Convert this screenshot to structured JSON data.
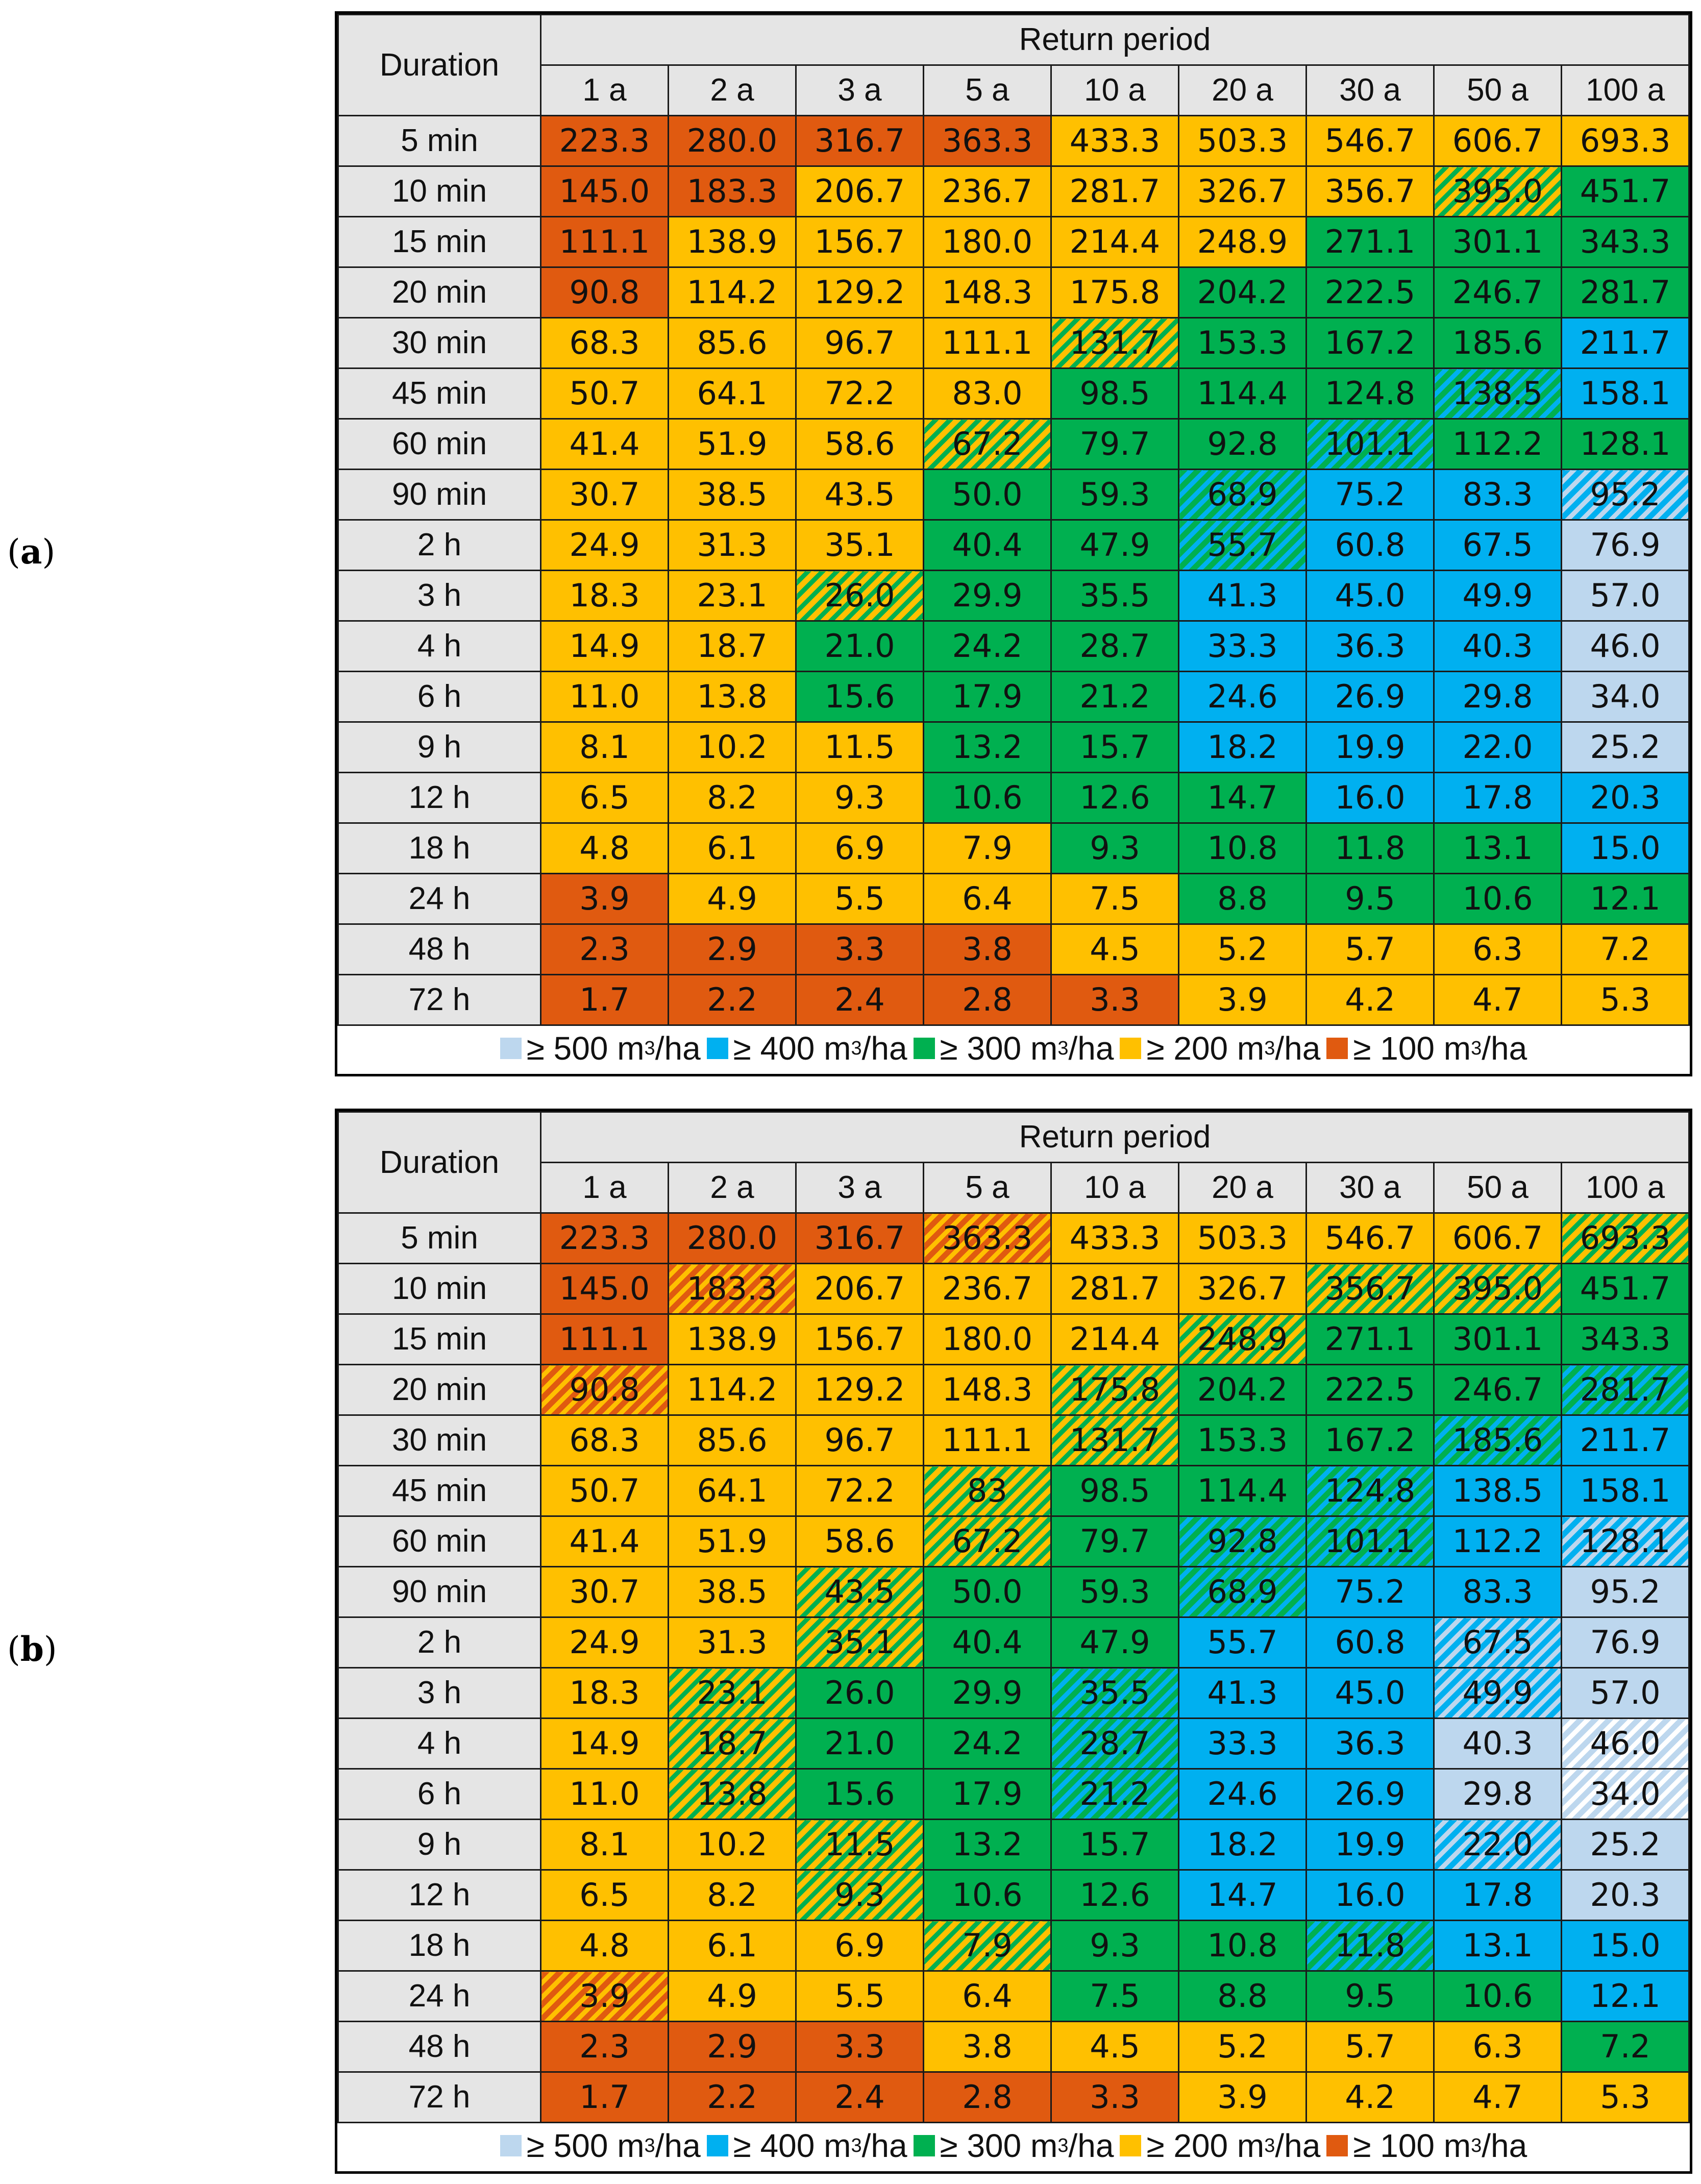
{
  "panels": [
    {
      "label": "a",
      "legend": [
        {
          "text": "≥ 500 m",
          "unit": "/ha",
          "sup": "3",
          "color": "#bdd7ee"
        },
        {
          "text": "≥ 400 m",
          "unit": "/ha",
          "sup": "3",
          "color": "#00b0f0"
        },
        {
          "text": "≥ 300 m",
          "unit": "/ha",
          "sup": "3",
          "color": "#00b050"
        },
        {
          "text": "≥ 200 m",
          "unit": "/ha",
          "sup": "3",
          "color": "#ffc000"
        },
        {
          "text": "≥ 100 m",
          "unit": "/ha",
          "sup": "3",
          "color": "#e05a10"
        }
      ]
    },
    {
      "label": "b",
      "legend": [
        {
          "text": "≥ 500 m",
          "unit": "/ha",
          "sup": "3",
          "color": "#bdd7ee"
        },
        {
          "text": "≥ 400 m",
          "unit": "/ha",
          "sup": "3",
          "color": "#00b0f0"
        },
        {
          "text": "≥ 300 m",
          "unit": "/ha",
          "sup": "3",
          "color": "#00b050"
        },
        {
          "text": "≥ 200 m",
          "unit": "/ha",
          "sup": "3",
          "color": "#ffc000"
        },
        {
          "text": "≥ 100 m",
          "unit": "/ha",
          "sup": "3",
          "color": "#e05a10"
        }
      ]
    }
  ],
  "colors": {
    "L": "#bdd7ee",
    "B": "#00b0f0",
    "G": "#00b050",
    "Y": "#ffc000",
    "O": "#e05a10",
    "header_bg": "#e5e5e5"
  },
  "chart_data": [
    {
      "type": "table",
      "panel": "a",
      "corner_label": "Duration",
      "group_header": "Return period",
      "columns": [
        "1 a",
        "2 a",
        "3 a",
        "5 a",
        "10 a",
        "20 a",
        "30 a",
        "50 a",
        "100 a"
      ],
      "rows": [
        "5 min",
        "10 min",
        "15 min",
        "20 min",
        "30 min",
        "45 min",
        "60 min",
        "90 min",
        "2 h",
        "3 h",
        "4 h",
        "6 h",
        "9 h",
        "12 h",
        "18 h",
        "24 h",
        "48 h",
        "72 h"
      ],
      "values": [
        [
          "223.3",
          "280.0",
          "316.7",
          "363.3",
          "433.3",
          "503.3",
          "546.7",
          "606.7",
          "693.3"
        ],
        [
          "145.0",
          "183.3",
          "206.7",
          "236.7",
          "281.7",
          "326.7",
          "356.7",
          "395.0",
          "451.7"
        ],
        [
          "111.1",
          "138.9",
          "156.7",
          "180.0",
          "214.4",
          "248.9",
          "271.1",
          "301.1",
          "343.3"
        ],
        [
          "90.8",
          "114.2",
          "129.2",
          "148.3",
          "175.8",
          "204.2",
          "222.5",
          "246.7",
          "281.7"
        ],
        [
          "68.3",
          "85.6",
          "96.7",
          "111.1",
          "131.7",
          "153.3",
          "167.2",
          "185.6",
          "211.7"
        ],
        [
          "50.7",
          "64.1",
          "72.2",
          "83.0",
          "98.5",
          "114.4",
          "124.8",
          "138.5",
          "158.1"
        ],
        [
          "41.4",
          "51.9",
          "58.6",
          "67.2",
          "79.7",
          "92.8",
          "101.1",
          "112.2",
          "128.1"
        ],
        [
          "30.7",
          "38.5",
          "43.5",
          "50.0",
          "59.3",
          "68.9",
          "75.2",
          "83.3",
          "95.2"
        ],
        [
          "24.9",
          "31.3",
          "35.1",
          "40.4",
          "47.9",
          "55.7",
          "60.8",
          "67.5",
          "76.9"
        ],
        [
          "18.3",
          "23.1",
          "26.0",
          "29.9",
          "35.5",
          "41.3",
          "45.0",
          "49.9",
          "57.0"
        ],
        [
          "14.9",
          "18.7",
          "21.0",
          "24.2",
          "28.7",
          "33.3",
          "36.3",
          "40.3",
          "46.0"
        ],
        [
          "11.0",
          "13.8",
          "15.6",
          "17.9",
          "21.2",
          "24.6",
          "26.9",
          "29.8",
          "34.0"
        ],
        [
          "8.1",
          "10.2",
          "11.5",
          "13.2",
          "15.7",
          "18.2",
          "19.9",
          "22.0",
          "25.2"
        ],
        [
          "6.5",
          "8.2",
          "9.3",
          "10.6",
          "12.6",
          "14.7",
          "16.0",
          "17.8",
          "20.3"
        ],
        [
          "4.8",
          "6.1",
          "6.9",
          "7.9",
          "9.3",
          "10.8",
          "11.8",
          "13.1",
          "15.0"
        ],
        [
          "3.9",
          "4.9",
          "5.5",
          "6.4",
          "7.5",
          "8.8",
          "9.5",
          "10.6",
          "12.1"
        ],
        [
          "2.3",
          "2.9",
          "3.3",
          "3.8",
          "4.5",
          "5.2",
          "5.7",
          "6.3",
          "7.2"
        ],
        [
          "1.7",
          "2.2",
          "2.4",
          "2.8",
          "3.3",
          "3.9",
          "4.2",
          "4.7",
          "5.3"
        ]
      ],
      "cell_classes": [
        [
          "O",
          "O",
          "O",
          "O",
          "Y",
          "Y",
          "Y",
          "Y",
          "Y"
        ],
        [
          "O",
          "O",
          "Y",
          "Y",
          "Y",
          "Y",
          "Y",
          "Y/G",
          "G"
        ],
        [
          "O",
          "Y",
          "Y",
          "Y",
          "Y",
          "Y",
          "G",
          "G",
          "G"
        ],
        [
          "O",
          "Y",
          "Y",
          "Y",
          "Y",
          "G",
          "G",
          "G",
          "G"
        ],
        [
          "Y",
          "Y",
          "Y",
          "Y",
          "Y/G",
          "G",
          "G",
          "G",
          "B"
        ],
        [
          "Y",
          "Y",
          "Y",
          "Y",
          "G",
          "G",
          "G",
          "G/B",
          "B"
        ],
        [
          "Y",
          "Y",
          "Y",
          "Y/G",
          "G",
          "G",
          "G/B",
          "G",
          "G"
        ],
        [
          "Y",
          "Y",
          "Y",
          "G",
          "G",
          "G/B",
          "B",
          "B",
          "B/L"
        ],
        [
          "Y",
          "Y",
          "Y",
          "G",
          "G",
          "G/B",
          "B",
          "B",
          "L"
        ],
        [
          "Y",
          "Y",
          "Y/G",
          "G",
          "G",
          "B",
          "B",
          "B",
          "L"
        ],
        [
          "Y",
          "Y",
          "G",
          "G",
          "G",
          "B",
          "B",
          "B",
          "L"
        ],
        [
          "Y",
          "Y",
          "G",
          "G",
          "G",
          "B",
          "B",
          "B",
          "L"
        ],
        [
          "Y",
          "Y",
          "Y",
          "G",
          "G",
          "B",
          "B",
          "B",
          "L"
        ],
        [
          "Y",
          "Y",
          "Y",
          "G",
          "G",
          "G",
          "B",
          "B",
          "B"
        ],
        [
          "Y",
          "Y",
          "Y",
          "Y",
          "G",
          "G",
          "G",
          "G",
          "B"
        ],
        [
          "O",
          "Y",
          "Y",
          "Y",
          "Y",
          "G",
          "G",
          "G",
          "G"
        ],
        [
          "O",
          "O",
          "O",
          "O",
          "Y",
          "Y",
          "Y",
          "Y",
          "Y"
        ],
        [
          "O",
          "O",
          "O",
          "O",
          "O",
          "Y",
          "Y",
          "Y",
          "Y"
        ]
      ]
    },
    {
      "type": "table",
      "panel": "b",
      "corner_label": "Duration",
      "group_header": "Return period",
      "columns": [
        "1 a",
        "2 a",
        "3 a",
        "5 a",
        "10 a",
        "20 a",
        "30 a",
        "50 a",
        "100 a"
      ],
      "rows": [
        "5 min",
        "10 min",
        "15 min",
        "20 min",
        "30 min",
        "45 min",
        "60 min",
        "90 min",
        "2 h",
        "3 h",
        "4 h",
        "6 h",
        "9 h",
        "12 h",
        "18 h",
        "24 h",
        "48 h",
        "72 h"
      ],
      "values": [
        [
          "223.3",
          "280.0",
          "316.7",
          "363.3",
          "433.3",
          "503.3",
          "546.7",
          "606.7",
          "693.3"
        ],
        [
          "145.0",
          "183.3",
          "206.7",
          "236.7",
          "281.7",
          "326.7",
          "356.7",
          "395.0",
          "451.7"
        ],
        [
          "111.1",
          "138.9",
          "156.7",
          "180.0",
          "214.4",
          "248.9",
          "271.1",
          "301.1",
          "343.3"
        ],
        [
          "90.8",
          "114.2",
          "129.2",
          "148.3",
          "175.8",
          "204.2",
          "222.5",
          "246.7",
          "281.7"
        ],
        [
          "68.3",
          "85.6",
          "96.7",
          "111.1",
          "131.7",
          "153.3",
          "167.2",
          "185.6",
          "211.7"
        ],
        [
          "50.7",
          "64.1",
          "72.2",
          "83",
          "98.5",
          "114.4",
          "124.8",
          "138.5",
          "158.1"
        ],
        [
          "41.4",
          "51.9",
          "58.6",
          "67.2",
          "79.7",
          "92.8",
          "101.1",
          "112.2",
          "128.1"
        ],
        [
          "30.7",
          "38.5",
          "43.5",
          "50.0",
          "59.3",
          "68.9",
          "75.2",
          "83.3",
          "95.2"
        ],
        [
          "24.9",
          "31.3",
          "35.1",
          "40.4",
          "47.9",
          "55.7",
          "60.8",
          "67.5",
          "76.9"
        ],
        [
          "18.3",
          "23.1",
          "26.0",
          "29.9",
          "35.5",
          "41.3",
          "45.0",
          "49.9",
          "57.0"
        ],
        [
          "14.9",
          "18.7",
          "21.0",
          "24.2",
          "28.7",
          "33.3",
          "36.3",
          "40.3",
          "46.0"
        ],
        [
          "11.0",
          "13.8",
          "15.6",
          "17.9",
          "21.2",
          "24.6",
          "26.9",
          "29.8",
          "34.0"
        ],
        [
          "8.1",
          "10.2",
          "11.5",
          "13.2",
          "15.7",
          "18.2",
          "19.9",
          "22.0",
          "25.2"
        ],
        [
          "6.5",
          "8.2",
          "9.3",
          "10.6",
          "12.6",
          "14.7",
          "16.0",
          "17.8",
          "20.3"
        ],
        [
          "4.8",
          "6.1",
          "6.9",
          "7.9",
          "9.3",
          "10.8",
          "11.8",
          "13.1",
          "15.0"
        ],
        [
          "3.9",
          "4.9",
          "5.5",
          "6.4",
          "7.5",
          "8.8",
          "9.5",
          "10.6",
          "12.1"
        ],
        [
          "2.3",
          "2.9",
          "3.3",
          "3.8",
          "4.5",
          "5.2",
          "5.7",
          "6.3",
          "7.2"
        ],
        [
          "1.7",
          "2.2",
          "2.4",
          "2.8",
          "3.3",
          "3.9",
          "4.2",
          "4.7",
          "5.3"
        ]
      ],
      "cell_classes": [
        [
          "O",
          "O",
          "O",
          "O/Y",
          "Y",
          "Y",
          "Y",
          "Y",
          "Y/G"
        ],
        [
          "O",
          "O/Y",
          "Y",
          "Y",
          "Y",
          "Y",
          "Y/G",
          "Y/G",
          "G"
        ],
        [
          "O",
          "Y",
          "Y",
          "Y",
          "Y",
          "Y/G",
          "G",
          "G",
          "G"
        ],
        [
          "O/Y",
          "Y",
          "Y",
          "Y",
          "Y/G",
          "G",
          "G",
          "G",
          "G/B"
        ],
        [
          "Y",
          "Y",
          "Y",
          "Y",
          "Y/G",
          "G",
          "G",
          "G/B",
          "B"
        ],
        [
          "Y",
          "Y",
          "Y",
          "Y/G",
          "G",
          "G",
          "G/B",
          "B",
          "B"
        ],
        [
          "Y",
          "Y",
          "Y",
          "Y/G",
          "G",
          "G/B",
          "G/B",
          "B",
          "B/L"
        ],
        [
          "Y",
          "Y",
          "Y/G",
          "G",
          "G",
          "G/B",
          "B",
          "B",
          "L"
        ],
        [
          "Y",
          "Y",
          "Y/G",
          "G",
          "G",
          "B",
          "B",
          "B/L",
          "L"
        ],
        [
          "Y",
          "Y/G",
          "G",
          "G",
          "G/B",
          "B",
          "B",
          "B/L",
          "L"
        ],
        [
          "Y",
          "Y/G",
          "G",
          "G",
          "G/B",
          "B",
          "B",
          "L",
          "L/W"
        ],
        [
          "Y",
          "Y/G",
          "G",
          "G",
          "G/B",
          "B",
          "B",
          "L",
          "L/W"
        ],
        [
          "Y",
          "Y",
          "Y/G",
          "G",
          "G",
          "B",
          "B",
          "B/L",
          "L"
        ],
        [
          "Y",
          "Y",
          "Y/G",
          "G",
          "G",
          "B",
          "B",
          "B",
          "L"
        ],
        [
          "Y",
          "Y",
          "Y",
          "Y/G",
          "G",
          "G",
          "G/B",
          "B",
          "B"
        ],
        [
          "O/Y",
          "Y",
          "Y",
          "Y",
          "G",
          "G",
          "G",
          "G",
          "B"
        ],
        [
          "O",
          "O",
          "O",
          "Y",
          "Y",
          "Y",
          "Y",
          "Y",
          "G"
        ],
        [
          "O",
          "O",
          "O",
          "O",
          "O",
          "Y",
          "Y",
          "Y",
          "Y"
        ]
      ]
    }
  ]
}
